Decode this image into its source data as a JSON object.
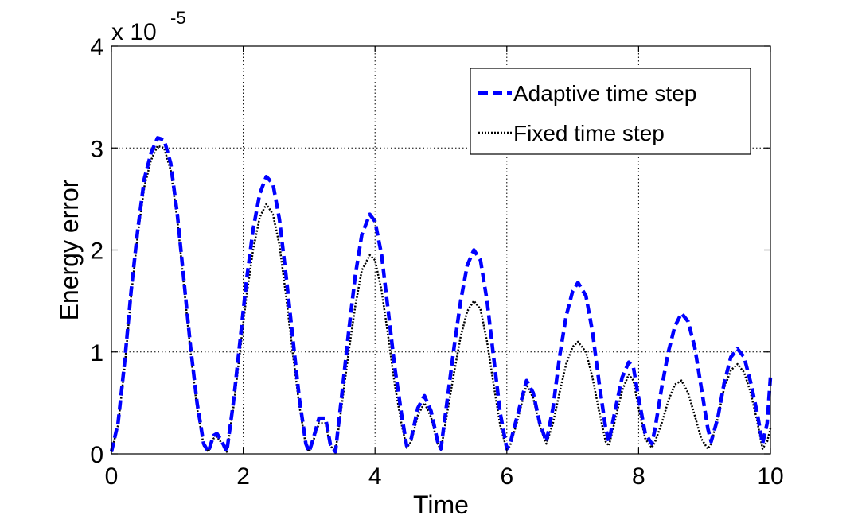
{
  "chart_data": {
    "type": "line",
    "title": "",
    "xlabel": "Time",
    "ylabel": "Energy error",
    "scale_label": "x 10",
    "scale_exponent": "-5",
    "xlim": [
      0,
      10
    ],
    "ylim": [
      0,
      4
    ],
    "xticks": [
      0,
      2,
      4,
      6,
      8,
      10
    ],
    "yticks": [
      0,
      1,
      2,
      3,
      4
    ],
    "x_tick_labels": [
      "0",
      "2",
      "4",
      "6",
      "8",
      "10"
    ],
    "y_tick_labels": [
      "0",
      "1",
      "2",
      "3",
      "4"
    ],
    "grid": true,
    "legend_position": "top-right",
    "series": [
      {
        "name": "Adaptive time step",
        "color": "#0000ff",
        "style": "dashed",
        "x": [
          0,
          0.1,
          0.2,
          0.3,
          0.4,
          0.5,
          0.6,
          0.7,
          0.8,
          0.9,
          1.0,
          1.1,
          1.2,
          1.3,
          1.4,
          1.47,
          1.55,
          1.6,
          1.68,
          1.75,
          1.85,
          1.95,
          2.05,
          2.15,
          2.25,
          2.35,
          2.45,
          2.55,
          2.65,
          2.75,
          2.85,
          2.95,
          3.0,
          3.05,
          3.15,
          3.25,
          3.32,
          3.4,
          3.5,
          3.6,
          3.7,
          3.8,
          3.92,
          4.0,
          4.1,
          4.2,
          4.3,
          4.4,
          4.48,
          4.55,
          4.65,
          4.75,
          4.85,
          4.95,
          5.0,
          5.1,
          5.2,
          5.3,
          5.4,
          5.5,
          5.6,
          5.7,
          5.8,
          5.9,
          6.0,
          6.05,
          6.15,
          6.3,
          6.4,
          6.5,
          6.6,
          6.7,
          6.8,
          6.9,
          7.0,
          7.08,
          7.2,
          7.3,
          7.4,
          7.5,
          7.55,
          7.65,
          7.75,
          7.85,
          7.92,
          8.0,
          8.1,
          8.2,
          8.25,
          8.35,
          8.45,
          8.55,
          8.65,
          8.75,
          8.85,
          8.95,
          9.05,
          9.1,
          9.2,
          9.3,
          9.4,
          9.5,
          9.6,
          9.7,
          9.8,
          9.88,
          9.95,
          10.0
        ],
        "y": [
          0.02,
          0.3,
          0.9,
          1.6,
          2.2,
          2.7,
          2.95,
          3.1,
          3.08,
          2.85,
          2.35,
          1.7,
          1.05,
          0.5,
          0.1,
          0.02,
          0.18,
          0.2,
          0.12,
          0.02,
          0.5,
          1.1,
          1.7,
          2.2,
          2.55,
          2.72,
          2.65,
          2.3,
          1.75,
          1.15,
          0.55,
          0.1,
          0.02,
          0.12,
          0.35,
          0.35,
          0.1,
          0.02,
          0.6,
          1.2,
          1.75,
          2.15,
          2.35,
          2.28,
          1.95,
          1.4,
          0.85,
          0.4,
          0.08,
          0.15,
          0.45,
          0.57,
          0.42,
          0.12,
          0.05,
          0.55,
          1.05,
          1.5,
          1.85,
          2.0,
          1.9,
          1.5,
          0.95,
          0.4,
          0.05,
          0.1,
          0.35,
          0.72,
          0.6,
          0.3,
          0.12,
          0.45,
          0.95,
          1.35,
          1.6,
          1.68,
          1.55,
          1.2,
          0.7,
          0.25,
          0.12,
          0.45,
          0.75,
          0.9,
          0.85,
          0.55,
          0.2,
          0.1,
          0.25,
          0.65,
          1.0,
          1.25,
          1.38,
          1.3,
          1.05,
          0.65,
          0.25,
          0.12,
          0.35,
          0.7,
          0.95,
          1.03,
          0.95,
          0.7,
          0.4,
          0.1,
          0.3,
          0.75
        ]
      },
      {
        "name": "Fixed time step",
        "color": "#000000",
        "style": "dotted",
        "x": [
          0,
          0.1,
          0.2,
          0.3,
          0.4,
          0.5,
          0.6,
          0.7,
          0.8,
          0.9,
          1.0,
          1.1,
          1.2,
          1.3,
          1.4,
          1.47,
          1.55,
          1.6,
          1.68,
          1.75,
          1.85,
          1.95,
          2.05,
          2.15,
          2.25,
          2.35,
          2.45,
          2.55,
          2.65,
          2.75,
          2.85,
          2.95,
          3.0,
          3.05,
          3.15,
          3.25,
          3.32,
          3.4,
          3.5,
          3.6,
          3.7,
          3.8,
          3.92,
          4.0,
          4.1,
          4.2,
          4.3,
          4.4,
          4.48,
          4.55,
          4.65,
          4.75,
          4.85,
          4.95,
          5.0,
          5.1,
          5.2,
          5.3,
          5.4,
          5.5,
          5.6,
          5.7,
          5.8,
          5.9,
          6.0,
          6.05,
          6.15,
          6.3,
          6.4,
          6.5,
          6.6,
          6.7,
          6.8,
          6.9,
          7.0,
          7.08,
          7.2,
          7.3,
          7.4,
          7.5,
          7.55,
          7.65,
          7.75,
          7.85,
          7.92,
          8.0,
          8.1,
          8.2,
          8.25,
          8.35,
          8.45,
          8.55,
          8.65,
          8.75,
          8.85,
          8.95,
          9.05,
          9.1,
          9.2,
          9.3,
          9.4,
          9.5,
          9.6,
          9.7,
          9.8,
          9.88,
          9.95,
          10.0
        ],
        "y": [
          0.02,
          0.28,
          0.85,
          1.55,
          2.15,
          2.62,
          2.88,
          3.02,
          3.0,
          2.78,
          2.3,
          1.65,
          1.0,
          0.45,
          0.08,
          0.02,
          0.15,
          0.17,
          0.1,
          0.02,
          0.45,
          1.0,
          1.55,
          2.0,
          2.32,
          2.45,
          2.35,
          2.05,
          1.55,
          1.0,
          0.48,
          0.08,
          0.02,
          0.1,
          0.3,
          0.3,
          0.08,
          0.02,
          0.5,
          1.0,
          1.45,
          1.8,
          1.95,
          1.9,
          1.6,
          1.15,
          0.68,
          0.3,
          0.06,
          0.12,
          0.38,
          0.5,
          0.36,
          0.1,
          0.04,
          0.42,
          0.8,
          1.15,
          1.4,
          1.5,
          1.42,
          1.1,
          0.68,
          0.28,
          0.04,
          0.08,
          0.3,
          0.68,
          0.55,
          0.27,
          0.1,
          0.3,
          0.6,
          0.88,
          1.05,
          1.1,
          1.0,
          0.75,
          0.42,
          0.12,
          0.08,
          0.35,
          0.62,
          0.78,
          0.72,
          0.45,
          0.15,
          0.06,
          0.12,
          0.3,
          0.52,
          0.68,
          0.72,
          0.6,
          0.38,
          0.15,
          0.05,
          0.1,
          0.35,
          0.65,
          0.82,
          0.88,
          0.8,
          0.6,
          0.32,
          0.05,
          0.12,
          0.25
        ]
      }
    ]
  }
}
